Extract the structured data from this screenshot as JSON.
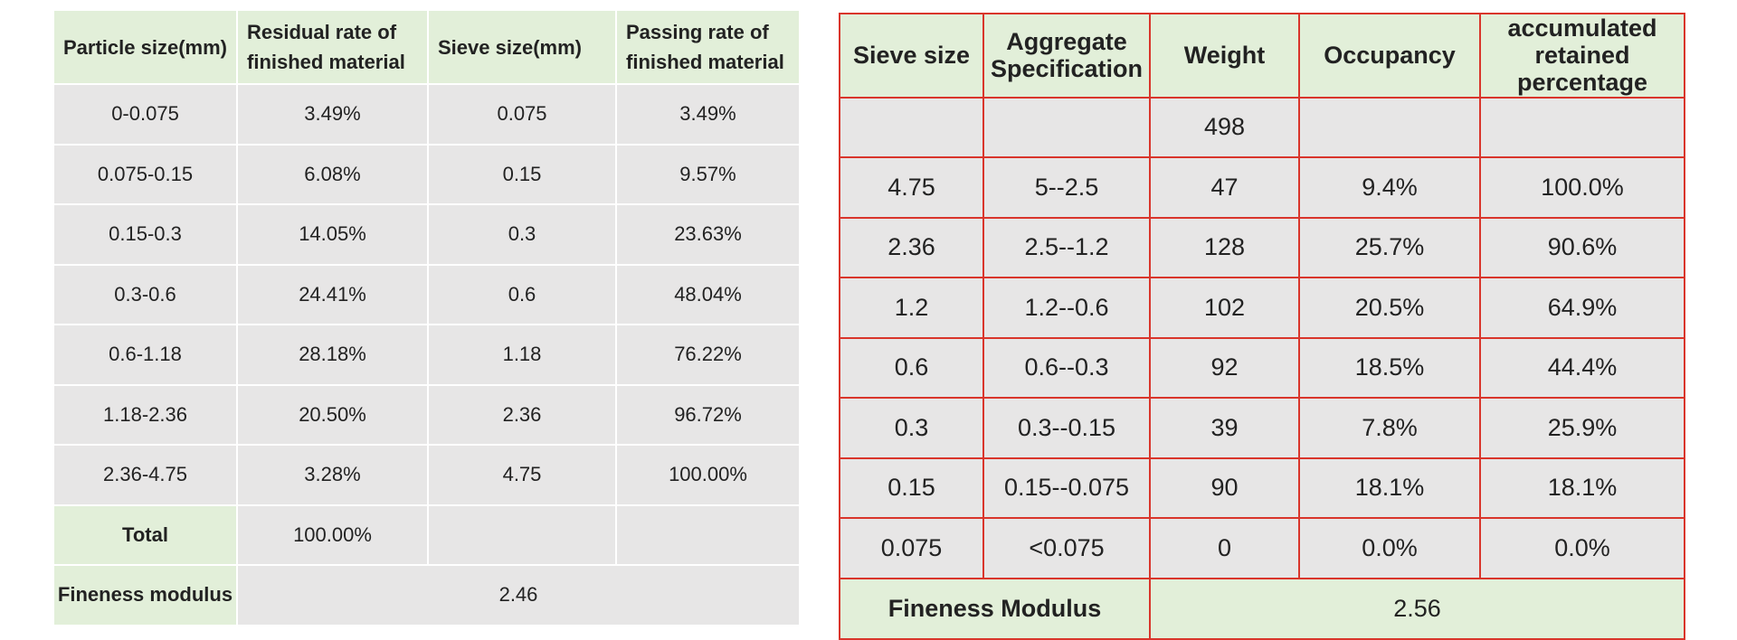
{
  "left": {
    "headers": [
      "Particle size(mm)",
      "Residual rate of finished material",
      "Sieve size(mm)",
      "Passing rate of finished material"
    ],
    "rows": [
      [
        "0-0.075",
        "3.49%",
        "0.075",
        "3.49%"
      ],
      [
        "0.075-0.15",
        "6.08%",
        "0.15",
        "9.57%"
      ],
      [
        "0.15-0.3",
        "14.05%",
        "0.3",
        "23.63%"
      ],
      [
        "0.3-0.6",
        "24.41%",
        "0.6",
        "48.04%"
      ],
      [
        "0.6-1.18",
        "28.18%",
        "1.18",
        "76.22%"
      ],
      [
        "1.18-2.36",
        "20.50%",
        "2.36",
        "96.72%"
      ],
      [
        "2.36-4.75",
        "3.28%",
        "4.75",
        "100.00%"
      ]
    ],
    "total_label": "Total",
    "total_value": "100.00%",
    "fineness_label": "Fineness modulus",
    "fineness_value": "2.46"
  },
  "right": {
    "headers": [
      "Sieve size",
      "Aggregate Specification",
      "Weight",
      "Occupancy",
      "accumulated retained percentage"
    ],
    "total_weight": "498",
    "rows": [
      [
        "4.75",
        "5--2.5",
        "47",
        "9.4%",
        "100.0%"
      ],
      [
        "2.36",
        "2.5--1.2",
        "128",
        "25.7%",
        "90.6%"
      ],
      [
        "1.2",
        "1.2--0.6",
        "102",
        "20.5%",
        "64.9%"
      ],
      [
        "0.6",
        "0.6--0.3",
        "92",
        "18.5%",
        "44.4%"
      ],
      [
        "0.3",
        "0.3--0.15",
        "39",
        "7.8%",
        "25.9%"
      ],
      [
        "0.15",
        "0.15--0.075",
        "90",
        "18.1%",
        "18.1%"
      ],
      [
        "0.075",
        "<0.075",
        "0",
        "0.0%",
        "0.0%"
      ]
    ],
    "fineness_label": "Fineness Modulus",
    "fineness_value": "2.56"
  }
}
